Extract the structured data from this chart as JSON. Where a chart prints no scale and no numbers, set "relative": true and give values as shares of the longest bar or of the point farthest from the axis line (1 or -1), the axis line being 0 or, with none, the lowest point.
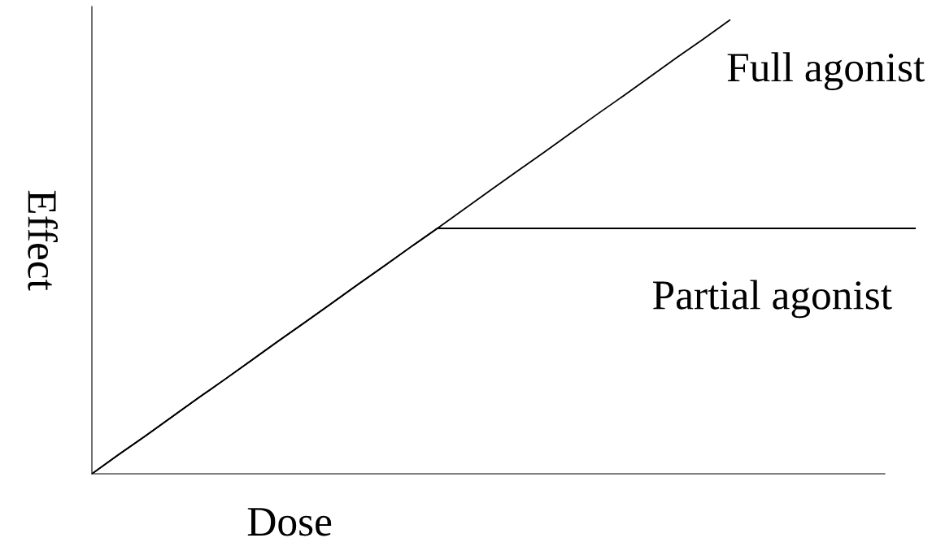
{
  "chart_data": {
    "type": "line",
    "relative": true,
    "xlabel": "Dose",
    "ylabel": "Effect",
    "categories": [
      null,
      null,
      null,
      null,
      null,
      null,
      null,
      null,
      null,
      null,
      null,
      null,
      null,
      null,
      null,
      null,
      null,
      null,
      null,
      null,
      null,
      null,
      null,
      null,
      null,
      null,
      null,
      null,
      null,
      null,
      null,
      null
    ],
    "series": [
      {
        "name": "Full agonist",
        "color": "#000000",
        "values": [
          0,
          0.042,
          0.083,
          0.125,
          0.167,
          0.208,
          0.25,
          0.292,
          0.333,
          0.375,
          0.417,
          0.458,
          0.5,
          0.541,
          0.583,
          0.625,
          0.667,
          0.708,
          0.75,
          0.792,
          0.833,
          0.875,
          0.917,
          0.958,
          1,
          null,
          null,
          null,
          null,
          null,
          null,
          null
        ]
      },
      {
        "name": "Partial agonist",
        "color": "#000000",
        "values": [
          0,
          0.042,
          0.083,
          0.125,
          0.167,
          0.208,
          0.25,
          0.292,
          0.333,
          0.375,
          0.417,
          0.458,
          0.5,
          0.541,
          0.541,
          0.541,
          0.541,
          0.541,
          0.541,
          0.541,
          0.541,
          0.541,
          0.541,
          0.541,
          0.541,
          0.541,
          0.541,
          0.541,
          0.541,
          0.541,
          0.541,
          0.541
        ]
      }
    ]
  }
}
